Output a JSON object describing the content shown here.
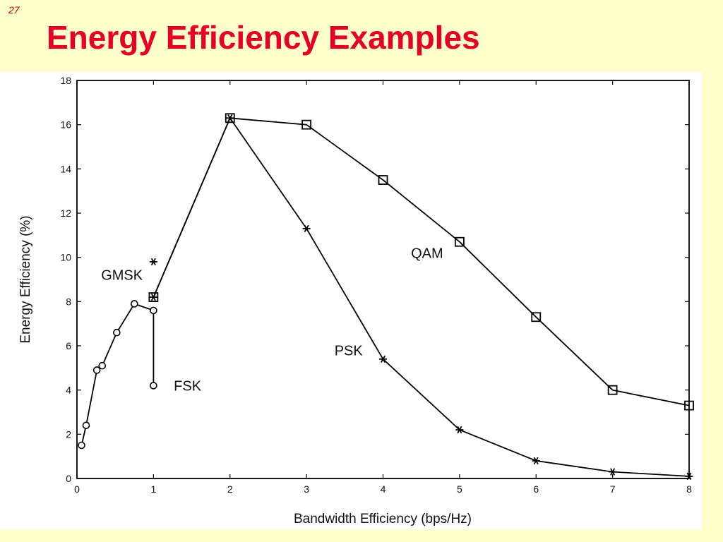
{
  "slide": {
    "number": "27",
    "title": "Energy Efficiency Examples"
  },
  "chart_data": {
    "type": "line",
    "title": "",
    "xlabel": "Bandwidth Efficiency (bps/Hz)",
    "ylabel": "Energy Efficiency (%)",
    "xlim": [
      0,
      8
    ],
    "ylim": [
      0,
      18
    ],
    "xticks": [
      0,
      1,
      2,
      3,
      4,
      5,
      6,
      7,
      8
    ],
    "yticks": [
      0,
      2,
      4,
      6,
      8,
      10,
      12,
      14,
      16,
      18
    ],
    "grid": false,
    "series": [
      {
        "name": "FSK",
        "marker": "circle",
        "connected": true,
        "x": [
          0.06,
          0.12,
          0.26,
          0.33,
          0.52,
          0.75,
          1.0,
          1.0
        ],
        "y": [
          1.5,
          2.4,
          4.9,
          5.1,
          6.6,
          7.9,
          7.6,
          4.2
        ]
      },
      {
        "name": "GMSK",
        "marker": "asterisk",
        "connected": false,
        "x": [
          1.0
        ],
        "y": [
          9.8
        ]
      },
      {
        "name": "PSK",
        "marker": "asterisk",
        "connected": true,
        "x": [
          1,
          2,
          3,
          4,
          5,
          6,
          7,
          8
        ],
        "y": [
          8.2,
          16.3,
          11.3,
          5.4,
          2.2,
          0.8,
          0.3,
          0.1
        ]
      },
      {
        "name": "QAM",
        "marker": "square",
        "connected": true,
        "x": [
          1,
          2,
          3,
          4,
          5,
          6,
          7,
          8
        ],
        "y": [
          8.2,
          16.3,
          16.0,
          13.5,
          10.7,
          7.3,
          4.0,
          3.3
        ]
      }
    ],
    "annotations": [
      {
        "text": "GMSK",
        "x": 0.5,
        "y": 9.2
      },
      {
        "text": "FSK",
        "x": 1.45,
        "y": 4.2
      },
      {
        "text": "PSK",
        "x": 3.55,
        "y": 5.8
      },
      {
        "text": "QAM",
        "x": 4.55,
        "y": 10.2
      }
    ]
  }
}
